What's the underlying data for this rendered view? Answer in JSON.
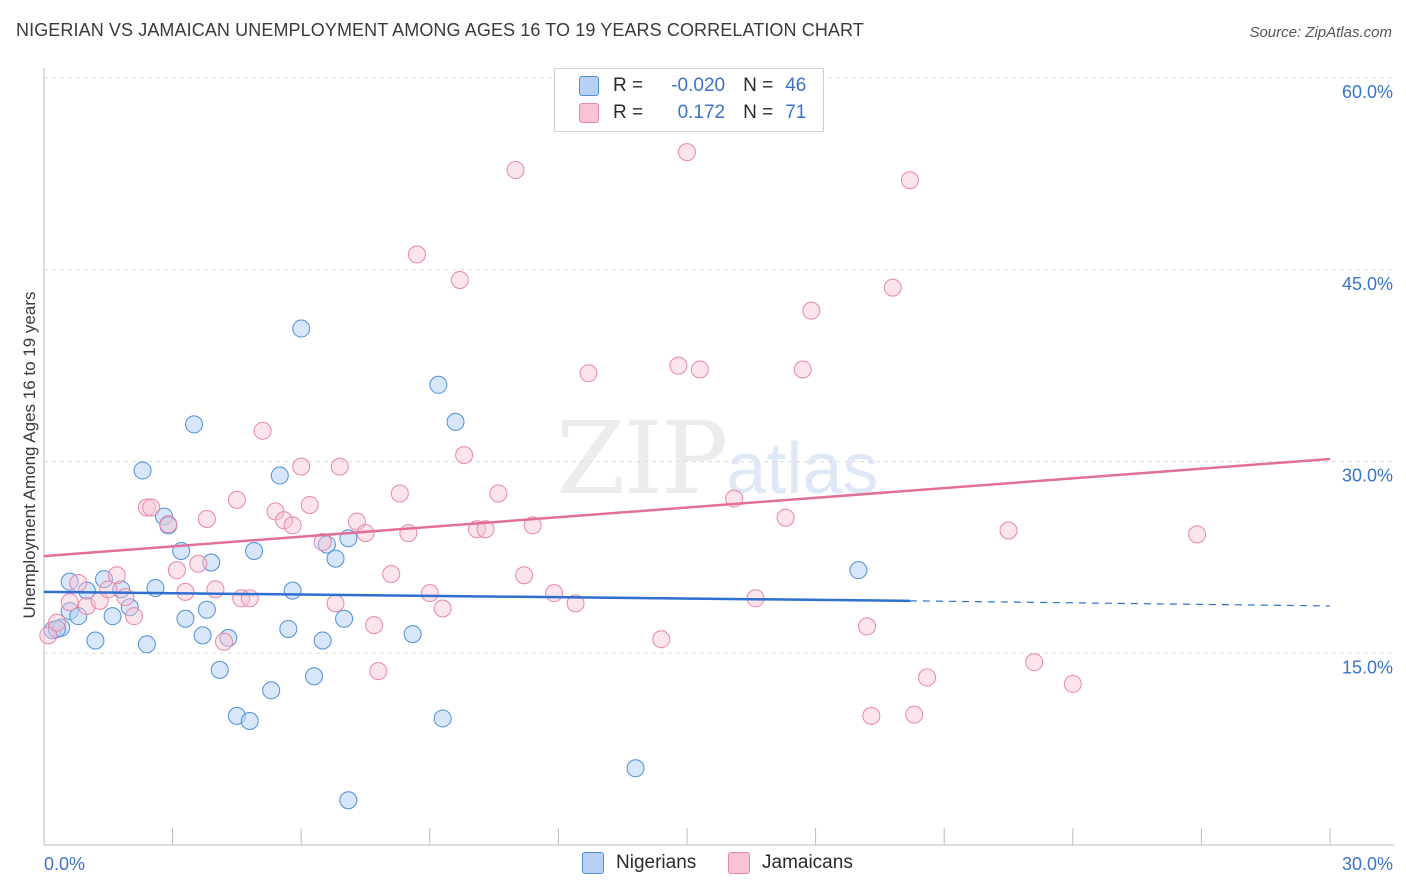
{
  "title": "NIGERIAN VS JAMAICAN UNEMPLOYMENT AMONG AGES 16 TO 19 YEARS CORRELATION CHART",
  "source": "Source: ZipAtlas.com",
  "watermark": {
    "zip": "ZIP",
    "atlas": "atlas"
  },
  "colors": {
    "nigerians": "#4f8fdb",
    "jamaicans": "#e986a8",
    "nig_fill": "#b6d1f3",
    "jam_fill": "#f7c4d4",
    "axis_text": "#3a73c9"
  },
  "legend": {
    "rows": [
      {
        "r_label": "R =",
        "r_value": "-0.020",
        "n_label": "N =",
        "n_value": "46"
      },
      {
        "r_label": "R =",
        "r_value": "0.172",
        "n_label": "N =",
        "n_value": "71"
      }
    ]
  },
  "bottom_legend": {
    "nigerians": "Nigerians",
    "jamaicans": "Jamaicans"
  },
  "chart_data": {
    "type": "scatter",
    "title": "NIGERIAN VS JAMAICAN UNEMPLOYMENT AMONG AGES 16 TO 19 YEARS CORRELATION CHART",
    "xlabel": "",
    "ylabel": "Unemployment Among Ages 16 to 19 years",
    "xlim": [
      0,
      30
    ],
    "ylim": [
      0,
      60
    ],
    "x_tick_labels": [
      "0.0%",
      "30.0%"
    ],
    "y_tick_labels": [
      "15.0%",
      "30.0%",
      "45.0%",
      "60.0%"
    ],
    "y_ticks": [
      15,
      30,
      45,
      60
    ],
    "grid": true,
    "series": [
      {
        "name": "Nigerians",
        "r": -0.02,
        "n": 46,
        "trend": {
          "x0": 0,
          "y0": 19.8,
          "x1": 20.2,
          "y1": 19.1,
          "dash_to_x": 30,
          "dash_to_y": 18.7
        },
        "points": [
          [
            0.2,
            16.8
          ],
          [
            0.4,
            17.0
          ],
          [
            0.6,
            20.6
          ],
          [
            0.6,
            18.3
          ],
          [
            0.8,
            17.9
          ],
          [
            1.0,
            19.9
          ],
          [
            1.2,
            16.0
          ],
          [
            1.4,
            20.8
          ],
          [
            1.6,
            17.9
          ],
          [
            1.8,
            20.0
          ],
          [
            2.0,
            18.6
          ],
          [
            2.3,
            29.3
          ],
          [
            2.4,
            15.7
          ],
          [
            2.6,
            20.1
          ],
          [
            2.8,
            25.7
          ],
          [
            2.9,
            25.0
          ],
          [
            3.2,
            23.0
          ],
          [
            3.3,
            17.7
          ],
          [
            3.5,
            32.9
          ],
          [
            3.7,
            16.4
          ],
          [
            3.8,
            18.4
          ],
          [
            3.9,
            22.1
          ],
          [
            4.1,
            13.7
          ],
          [
            4.3,
            16.2
          ],
          [
            4.5,
            10.1
          ],
          [
            4.8,
            9.7
          ],
          [
            4.9,
            23.0
          ],
          [
            5.3,
            12.1
          ],
          [
            5.5,
            28.9
          ],
          [
            5.7,
            16.9
          ],
          [
            5.8,
            19.9
          ],
          [
            6.0,
            40.4
          ],
          [
            6.3,
            13.2
          ],
          [
            6.5,
            16.0
          ],
          [
            6.6,
            23.5
          ],
          [
            6.8,
            22.4
          ],
          [
            7.0,
            17.7
          ],
          [
            7.1,
            24.0
          ],
          [
            7.1,
            3.5
          ],
          [
            8.6,
            16.5
          ],
          [
            9.2,
            36.0
          ],
          [
            9.3,
            9.9
          ],
          [
            9.6,
            33.1
          ],
          [
            13.8,
            6.0
          ],
          [
            19.0,
            21.5
          ],
          [
            0.3,
            16.9
          ]
        ]
      },
      {
        "name": "Jamaicans",
        "r": 0.172,
        "n": 71,
        "trend": {
          "x0": 0,
          "y0": 22.6,
          "x1": 30,
          "y1": 30.2
        },
        "points": [
          [
            0.1,
            16.4
          ],
          [
            0.3,
            17.4
          ],
          [
            0.6,
            19.0
          ],
          [
            0.8,
            20.5
          ],
          [
            1.0,
            18.7
          ],
          [
            1.3,
            19.1
          ],
          [
            1.5,
            20.0
          ],
          [
            1.7,
            21.1
          ],
          [
            1.9,
            19.4
          ],
          [
            2.1,
            17.9
          ],
          [
            2.4,
            26.4
          ],
          [
            2.5,
            26.4
          ],
          [
            2.9,
            25.1
          ],
          [
            3.1,
            21.5
          ],
          [
            3.3,
            19.8
          ],
          [
            3.6,
            22.0
          ],
          [
            3.8,
            25.5
          ],
          [
            4.0,
            20.0
          ],
          [
            4.2,
            15.9
          ],
          [
            4.5,
            27.0
          ],
          [
            4.6,
            19.3
          ],
          [
            4.8,
            19.3
          ],
          [
            5.1,
            32.4
          ],
          [
            5.4,
            26.1
          ],
          [
            5.6,
            25.4
          ],
          [
            5.8,
            25.0
          ],
          [
            6.0,
            29.6
          ],
          [
            6.2,
            26.6
          ],
          [
            6.5,
            23.7
          ],
          [
            6.8,
            18.9
          ],
          [
            6.9,
            29.6
          ],
          [
            7.3,
            25.3
          ],
          [
            7.5,
            24.4
          ],
          [
            7.7,
            17.2
          ],
          [
            7.8,
            13.6
          ],
          [
            8.1,
            21.2
          ],
          [
            8.3,
            27.5
          ],
          [
            8.5,
            24.4
          ],
          [
            8.7,
            46.2
          ],
          [
            9.0,
            19.7
          ],
          [
            9.3,
            18.5
          ],
          [
            9.7,
            44.2
          ],
          [
            9.8,
            30.5
          ],
          [
            10.1,
            24.7
          ],
          [
            10.3,
            24.7
          ],
          [
            10.6,
            27.5
          ],
          [
            11.0,
            52.8
          ],
          [
            11.2,
            21.1
          ],
          [
            11.4,
            25.0
          ],
          [
            11.9,
            19.7
          ],
          [
            12.4,
            18.9
          ],
          [
            12.7,
            36.9
          ],
          [
            14.4,
            16.1
          ],
          [
            14.8,
            37.5
          ],
          [
            15.0,
            54.2
          ],
          [
            15.3,
            37.2
          ],
          [
            16.1,
            27.1
          ],
          [
            16.6,
            19.3
          ],
          [
            17.3,
            25.6
          ],
          [
            17.7,
            37.2
          ],
          [
            17.9,
            41.8
          ],
          [
            19.2,
            17.1
          ],
          [
            19.3,
            10.1
          ],
          [
            19.8,
            43.6
          ],
          [
            20.2,
            52.0
          ],
          [
            20.3,
            10.2
          ],
          [
            20.6,
            13.1
          ],
          [
            22.5,
            24.6
          ],
          [
            23.1,
            14.3
          ],
          [
            24.0,
            12.6
          ],
          [
            26.9,
            24.3
          ]
        ]
      }
    ]
  }
}
